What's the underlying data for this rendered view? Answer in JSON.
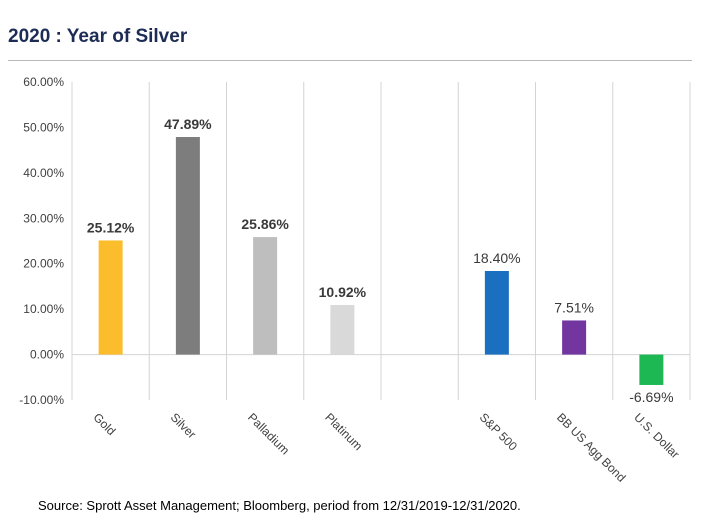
{
  "header": {
    "title": "2020 : Year of Silver"
  },
  "footer": {
    "source": "Source: Sprott Asset Management; Bloomberg, period from 12/31/2019-12/31/2020."
  },
  "chart_data": {
    "type": "bar",
    "title": "2020 : Year of Silver",
    "categories": [
      "Gold",
      "Silver",
      "Palladium",
      "Platinum",
      "",
      "S&P 500",
      "BB US Agg Bond",
      "U.S. Dollar"
    ],
    "values": [
      25.12,
      47.89,
      25.86,
      10.92,
      null,
      18.4,
      7.51,
      -6.69
    ],
    "data_labels": [
      "25.12%",
      "47.89%",
      "25.86%",
      "10.92%",
      "",
      "18.40%",
      "7.51%",
      "-6.69%"
    ],
    "bold_labels": [
      true,
      true,
      true,
      true,
      false,
      false,
      false,
      false
    ],
    "colors": [
      "#fbbd2c",
      "#7d7d7d",
      "#bebebe",
      "#d9d9d9",
      "",
      "#1a6fc0",
      "#7336a0",
      "#1db754"
    ],
    "ylim": [
      -10,
      60
    ],
    "yticks": [
      "-10.00%",
      "0.00%",
      "10.00%",
      "20.00%",
      "30.00%",
      "40.00%",
      "50.00%",
      "60.00%"
    ],
    "ytick_values": [
      -10,
      0,
      10,
      20,
      30,
      40,
      50,
      60
    ],
    "grid": "vertical",
    "xlabel": "",
    "ylabel": ""
  }
}
